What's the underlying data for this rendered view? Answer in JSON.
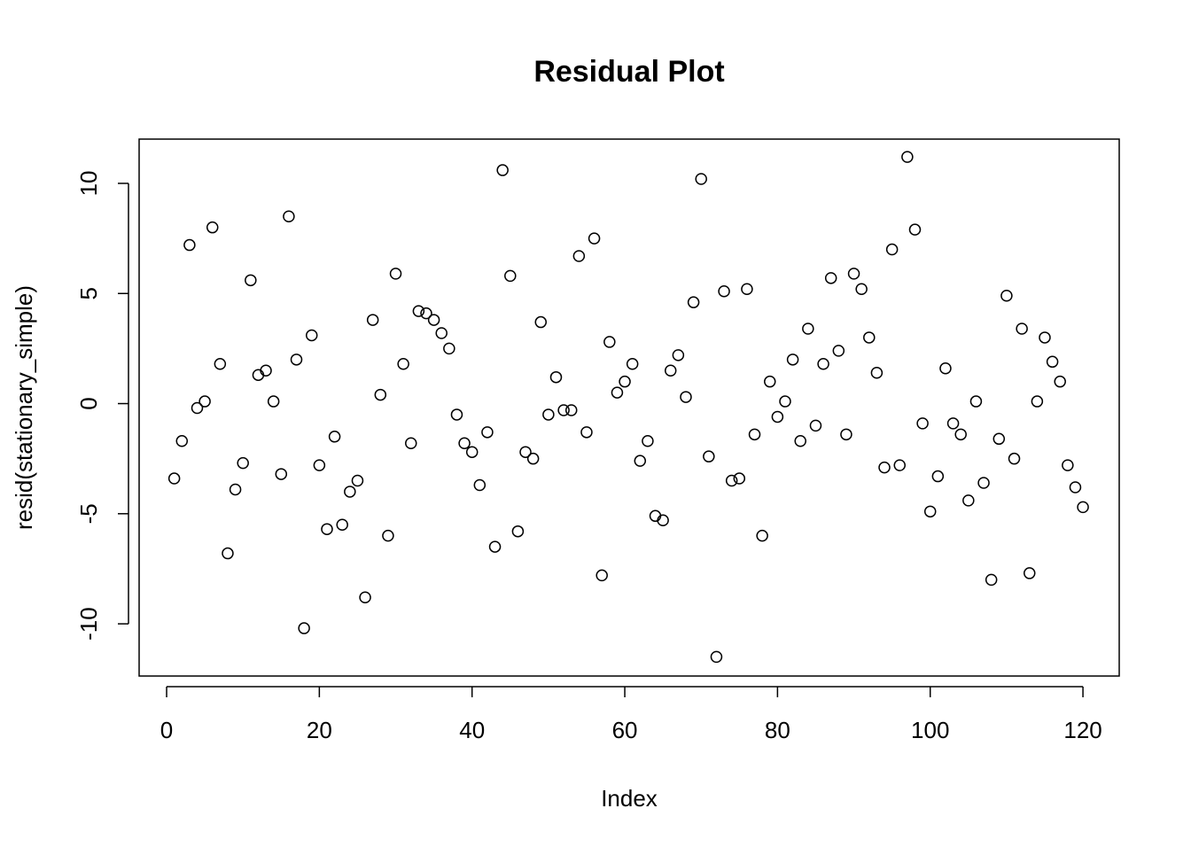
{
  "chart_data": {
    "type": "scatter",
    "title": "Residual Plot",
    "x_label": "Index",
    "y_label": "resid(stationary_simple)",
    "x": [
      1,
      2,
      3,
      4,
      5,
      6,
      7,
      8,
      9,
      10,
      11,
      12,
      13,
      14,
      15,
      16,
      17,
      18,
      19,
      20,
      21,
      22,
      23,
      24,
      25,
      26,
      27,
      28,
      29,
      30,
      31,
      32,
      33,
      34,
      35,
      36,
      37,
      38,
      39,
      40,
      41,
      42,
      43,
      44,
      45,
      46,
      47,
      48,
      49,
      50,
      51,
      52,
      53,
      54,
      55,
      56,
      57,
      58,
      59,
      60,
      61,
      62,
      63,
      64,
      65,
      66,
      67,
      68,
      69,
      70,
      71,
      72,
      73,
      74,
      75,
      76,
      77,
      78,
      79,
      80,
      81,
      82,
      83,
      84,
      85,
      86,
      87,
      88,
      89,
      90,
      91,
      92,
      93,
      94,
      95,
      96,
      97,
      98,
      99,
      100,
      101,
      102,
      103,
      104,
      105,
      106,
      107,
      108,
      109,
      110,
      111,
      112,
      113,
      114,
      115,
      116,
      117,
      118,
      119,
      120
    ],
    "values": [
      -3.4,
      -1.7,
      7.2,
      -0.2,
      0.1,
      8.0,
      1.8,
      -6.8,
      -3.9,
      -2.7,
      5.6,
      1.3,
      1.5,
      0.1,
      -3.2,
      8.5,
      2.0,
      -10.2,
      3.1,
      -2.8,
      -5.7,
      -1.5,
      -5.5,
      -4.0,
      -3.5,
      -8.8,
      3.8,
      0.4,
      -6.0,
      5.9,
      1.8,
      -1.8,
      4.2,
      4.1,
      3.8,
      3.2,
      2.5,
      -0.5,
      -1.8,
      -2.2,
      -3.7,
      -1.3,
      -6.5,
      10.6,
      5.8,
      -5.8,
      -2.2,
      -2.5,
      3.7,
      -0.5,
      1.2,
      -0.3,
      -0.3,
      6.7,
      -1.3,
      7.5,
      -7.8,
      2.8,
      0.5,
      1.0,
      1.8,
      -2.6,
      -1.7,
      -5.1,
      -5.3,
      1.5,
      2.2,
      0.3,
      4.6,
      10.2,
      -2.4,
      -11.5,
      5.1,
      -3.5,
      -3.4,
      5.2,
      -1.4,
      -6.0,
      1.0,
      -0.6,
      0.1,
      2.0,
      -1.7,
      3.4,
      -1.0,
      1.8,
      5.7,
      2.4,
      -1.4,
      5.9,
      5.2,
      3.0,
      1.4,
      -2.9,
      7.0,
      -2.8,
      11.2,
      7.9,
      -0.9,
      -4.9,
      -3.3,
      1.6,
      -0.9,
      -1.4,
      -4.4,
      0.1,
      -3.6,
      -8.0,
      -1.6,
      4.9,
      -2.5,
      3.4,
      -7.7,
      0.1,
      3.0,
      1.9,
      1.0,
      -2.8,
      -3.8,
      -4.7
    ],
    "color": "#000000",
    "xlim": [
      -3.6,
      124.75
    ],
    "ylim": [
      -12.37,
      12.01
    ],
    "xticks": [
      0,
      20,
      40,
      60,
      80,
      100,
      120
    ],
    "yticks": [
      -10,
      -5,
      0,
      5,
      10
    ]
  }
}
